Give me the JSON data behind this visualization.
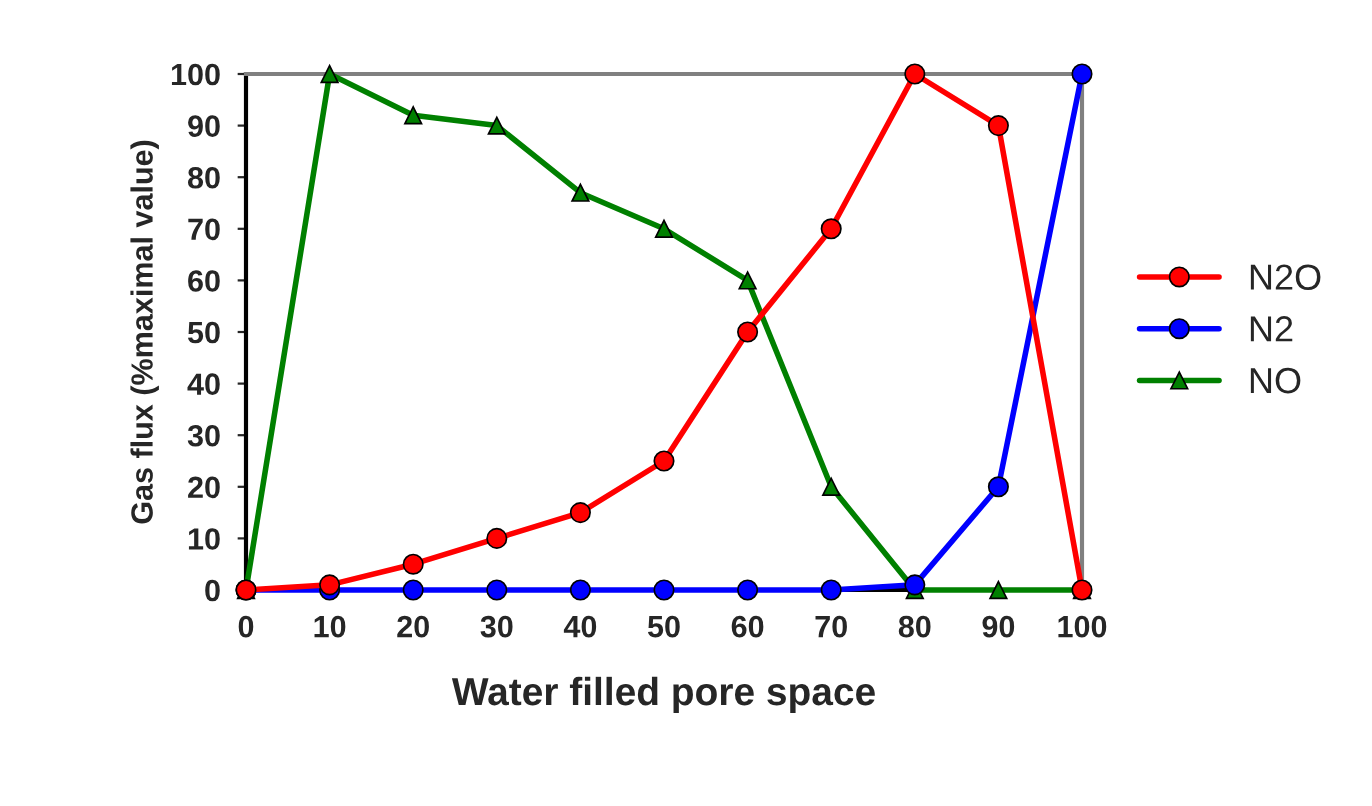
{
  "chart_data": {
    "type": "line",
    "xlabel": "Water filled pore space",
    "ylabel": "Gas flux (%maximal value)",
    "x": [
      0,
      10,
      20,
      30,
      40,
      50,
      60,
      70,
      80,
      90,
      100
    ],
    "series": [
      {
        "name": "N2O",
        "color": "#ff0000",
        "marker": "circle",
        "values": [
          0,
          1,
          5,
          10,
          15,
          25,
          50,
          70,
          100,
          90,
          0
        ]
      },
      {
        "name": "N2",
        "color": "#0000ff",
        "marker": "circle",
        "values": [
          0,
          0,
          0,
          0,
          0,
          0,
          0,
          0,
          1,
          20,
          100
        ]
      },
      {
        "name": "NO",
        "color": "#008000",
        "marker": "triangle",
        "values": [
          0,
          100,
          92,
          90,
          77,
          70,
          60,
          20,
          0,
          0,
          0
        ]
      }
    ],
    "xlim": [
      0,
      100
    ],
    "ylim": [
      0,
      100
    ],
    "xticks": [
      0,
      10,
      20,
      30,
      40,
      50,
      60,
      70,
      80,
      90,
      100
    ],
    "yticks": [
      0,
      10,
      20,
      30,
      40,
      50,
      60,
      70,
      80,
      90,
      100
    ],
    "grid": false,
    "legend": "right",
    "line_style": "solid"
  }
}
